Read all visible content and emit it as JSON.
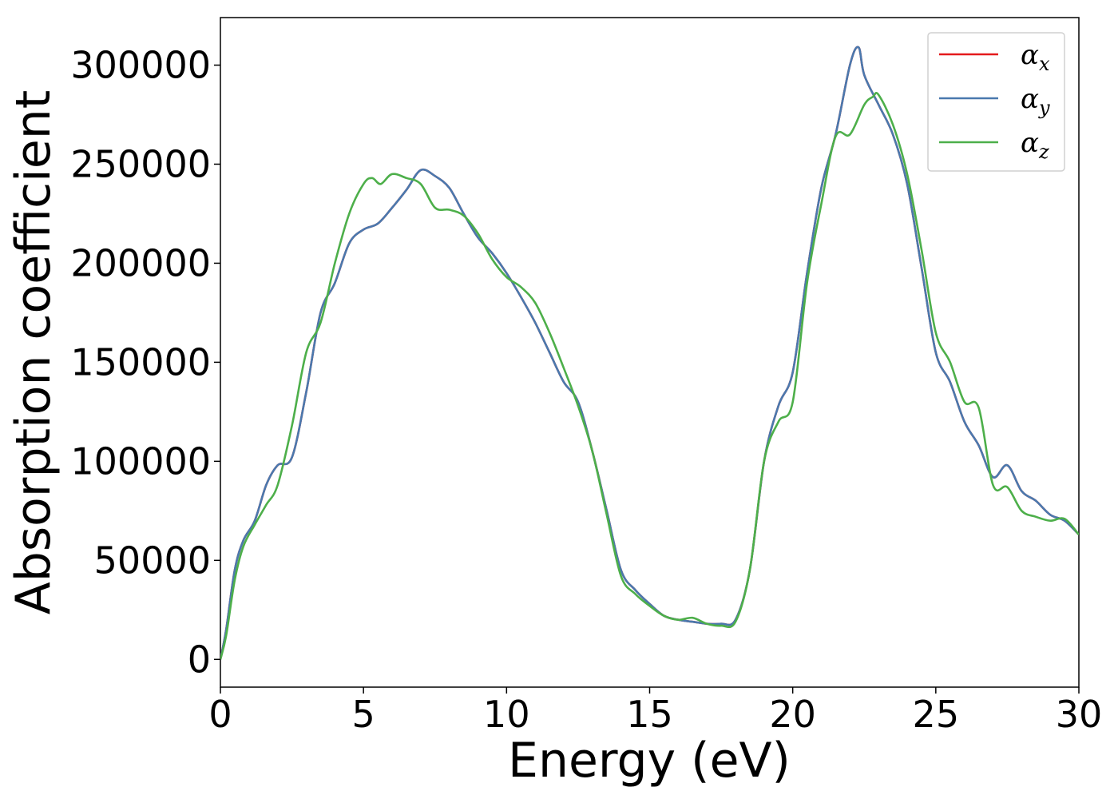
{
  "chart_data": {
    "type": "line",
    "xlabel": "Energy (eV)",
    "ylabel": "Absorption coefficient",
    "xlim": [
      0,
      30
    ],
    "ylim": [
      -14000,
      324000
    ],
    "xticks": [
      0,
      5,
      10,
      15,
      20,
      25,
      30
    ],
    "xtick_labels": [
      "0",
      "5",
      "10",
      "15",
      "20",
      "25",
      "30"
    ],
    "yticks": [
      0,
      50000,
      100000,
      150000,
      200000,
      250000,
      300000
    ],
    "ytick_labels": [
      "0",
      "50000",
      "100000",
      "150000",
      "200000",
      "250000",
      "300000"
    ],
    "grid": false,
    "legend_position": "top-right",
    "series": [
      {
        "name": "α",
        "subscript": "x",
        "color": "#e41a1c",
        "x": [
          0,
          0.2,
          0.5,
          0.8,
          1.2,
          1.6,
          2.0,
          2.5,
          3.0,
          3.5,
          4.0,
          4.5,
          5.0,
          5.5,
          6.0,
          6.5,
          7.0,
          7.5,
          8.0,
          8.5,
          9.0,
          9.5,
          10.0,
          10.5,
          11.0,
          11.5,
          12.0,
          12.5,
          13.0,
          13.5,
          14.0,
          14.5,
          15.0,
          15.5,
          16.0,
          16.5,
          17.0,
          17.5,
          18.0,
          18.5,
          19.0,
          19.5,
          20.0,
          20.5,
          21.0,
          21.5,
          22.0,
          22.3,
          22.5,
          23.0,
          23.5,
          24.0,
          24.5,
          25.0,
          25.5,
          26.0,
          26.5,
          27.0,
          27.5,
          28.0,
          28.5,
          29.0,
          29.5,
          30.0
        ],
        "y": [
          0,
          15000,
          45000,
          60000,
          70000,
          88000,
          98000,
          102000,
          135000,
          175000,
          190000,
          210000,
          217000,
          220000,
          228000,
          237000,
          247000,
          244000,
          238000,
          225000,
          213000,
          205000,
          195000,
          183000,
          170000,
          155000,
          140000,
          130000,
          105000,
          75000,
          45000,
          35000,
          28000,
          22000,
          20000,
          19000,
          18000,
          18000,
          20000,
          45000,
          100000,
          128000,
          145000,
          195000,
          238000,
          265000,
          300000,
          309000,
          295000,
          280000,
          265000,
          240000,
          198000,
          155000,
          140000,
          120000,
          108000,
          92000,
          98000,
          85000,
          80000,
          73000,
          70000,
          63000
        ]
      },
      {
        "name": "α",
        "subscript": "y",
        "color": "#4a79ae",
        "x": [
          0,
          0.2,
          0.5,
          0.8,
          1.2,
          1.6,
          2.0,
          2.5,
          3.0,
          3.5,
          4.0,
          4.5,
          5.0,
          5.5,
          6.0,
          6.5,
          7.0,
          7.5,
          8.0,
          8.5,
          9.0,
          9.5,
          10.0,
          10.5,
          11.0,
          11.5,
          12.0,
          12.5,
          13.0,
          13.5,
          14.0,
          14.5,
          15.0,
          15.5,
          16.0,
          16.5,
          17.0,
          17.5,
          18.0,
          18.5,
          19.0,
          19.5,
          20.0,
          20.5,
          21.0,
          21.5,
          22.0,
          22.3,
          22.5,
          23.0,
          23.5,
          24.0,
          24.5,
          25.0,
          25.5,
          26.0,
          26.5,
          27.0,
          27.5,
          28.0,
          28.5,
          29.0,
          29.5,
          30.0
        ],
        "y": [
          0,
          15000,
          45000,
          60000,
          70000,
          88000,
          98000,
          102000,
          135000,
          175000,
          190000,
          210000,
          217000,
          220000,
          228000,
          237000,
          247000,
          244000,
          238000,
          225000,
          213000,
          205000,
          195000,
          183000,
          170000,
          155000,
          140000,
          130000,
          105000,
          75000,
          45000,
          35000,
          28000,
          22000,
          20000,
          19000,
          18000,
          18000,
          20000,
          45000,
          100000,
          128000,
          145000,
          195000,
          238000,
          265000,
          300000,
          309000,
          295000,
          280000,
          265000,
          240000,
          198000,
          155000,
          140000,
          120000,
          108000,
          92000,
          98000,
          85000,
          80000,
          73000,
          70000,
          63000
        ]
      },
      {
        "name": "α",
        "subscript": "z",
        "color": "#4daf4a",
        "x": [
          0,
          0.2,
          0.5,
          0.8,
          1.2,
          1.6,
          2.0,
          2.5,
          3.0,
          3.5,
          4.0,
          4.5,
          5.0,
          5.3,
          5.6,
          6.0,
          6.5,
          7.0,
          7.5,
          8.0,
          8.5,
          9.0,
          9.5,
          10.0,
          10.5,
          11.0,
          11.5,
          12.0,
          12.5,
          13.0,
          13.5,
          14.0,
          14.5,
          15.0,
          15.5,
          16.0,
          16.5,
          17.0,
          17.5,
          18.0,
          18.5,
          19.0,
          19.5,
          20.0,
          20.5,
          21.0,
          21.5,
          22.0,
          22.5,
          22.8,
          23.0,
          23.5,
          24.0,
          24.5,
          25.0,
          25.5,
          26.0,
          26.5,
          27.0,
          27.5,
          28.0,
          28.5,
          29.0,
          29.5,
          30.0
        ],
        "y": [
          0,
          12000,
          40000,
          57000,
          68000,
          78000,
          88000,
          118000,
          155000,
          170000,
          200000,
          225000,
          240000,
          243000,
          240000,
          245000,
          243000,
          240000,
          228000,
          227000,
          224000,
          215000,
          202000,
          193000,
          188000,
          180000,
          165000,
          147000,
          128000,
          105000,
          73000,
          42000,
          33000,
          27000,
          22000,
          20000,
          21000,
          18000,
          17000,
          19000,
          45000,
          100000,
          120000,
          130000,
          190000,
          230000,
          264000,
          265000,
          280000,
          284000,
          285000,
          270000,
          245000,
          207000,
          165000,
          150000,
          130000,
          127000,
          88000,
          87000,
          75000,
          72000,
          70000,
          71000,
          63000
        ]
      }
    ]
  }
}
